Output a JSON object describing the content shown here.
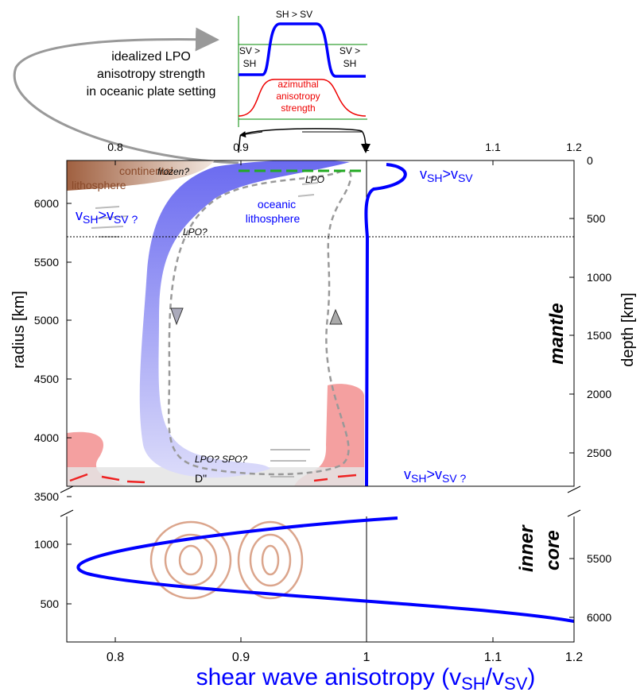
{
  "inset": {
    "top": "SH > SV",
    "left": [
      "SV >",
      "SH"
    ],
    "right": [
      "SV >",
      "SH"
    ],
    "red": [
      "azimuthal",
      "anisotropy",
      "strength"
    ],
    "caption": [
      "idealized LPO",
      "anisotropy strength",
      "in oceanic plate setting"
    ]
  },
  "axes": {
    "x_top": [
      0.8,
      0.9,
      1,
      1.1,
      1.2
    ],
    "x_bottom": [
      0.8,
      0.9,
      1,
      1.1,
      1.2
    ],
    "radius_ticks": [
      6000,
      5500,
      5000,
      4500,
      4000,
      3500
    ],
    "depth_ticks": [
      0,
      500,
      1000,
      1500,
      2000,
      2500
    ],
    "core_radius_ticks": [
      1000,
      500
    ],
    "core_depth_ticks": [
      5500,
      6000
    ],
    "radius_label": "radius [km]",
    "depth_label": "depth [km]",
    "x_label": [
      "shear wave anisotropy (v",
      "SH",
      "/v",
      "SV",
      ")"
    ]
  },
  "labels": {
    "continental": [
      "continental",
      "lithosphere"
    ],
    "frozen": "frozen?",
    "oceanic": [
      "oceanic",
      "lithosphere"
    ],
    "lpo": "LPO",
    "lpo2": "LPO?",
    "lpo_spo": "LPO?  SPO?",
    "dpp": "D\"",
    "mantle": "mantle",
    "inner": "inner",
    "core": "core",
    "top_right": [
      "v",
      "SH",
      ">v",
      "SV"
    ],
    "left_mid": [
      "v",
      "SH",
      ">v",
      "SV",
      " ?"
    ],
    "bottom_right": [
      "v",
      "SH",
      ">v",
      "SV",
      " ?"
    ]
  }
}
